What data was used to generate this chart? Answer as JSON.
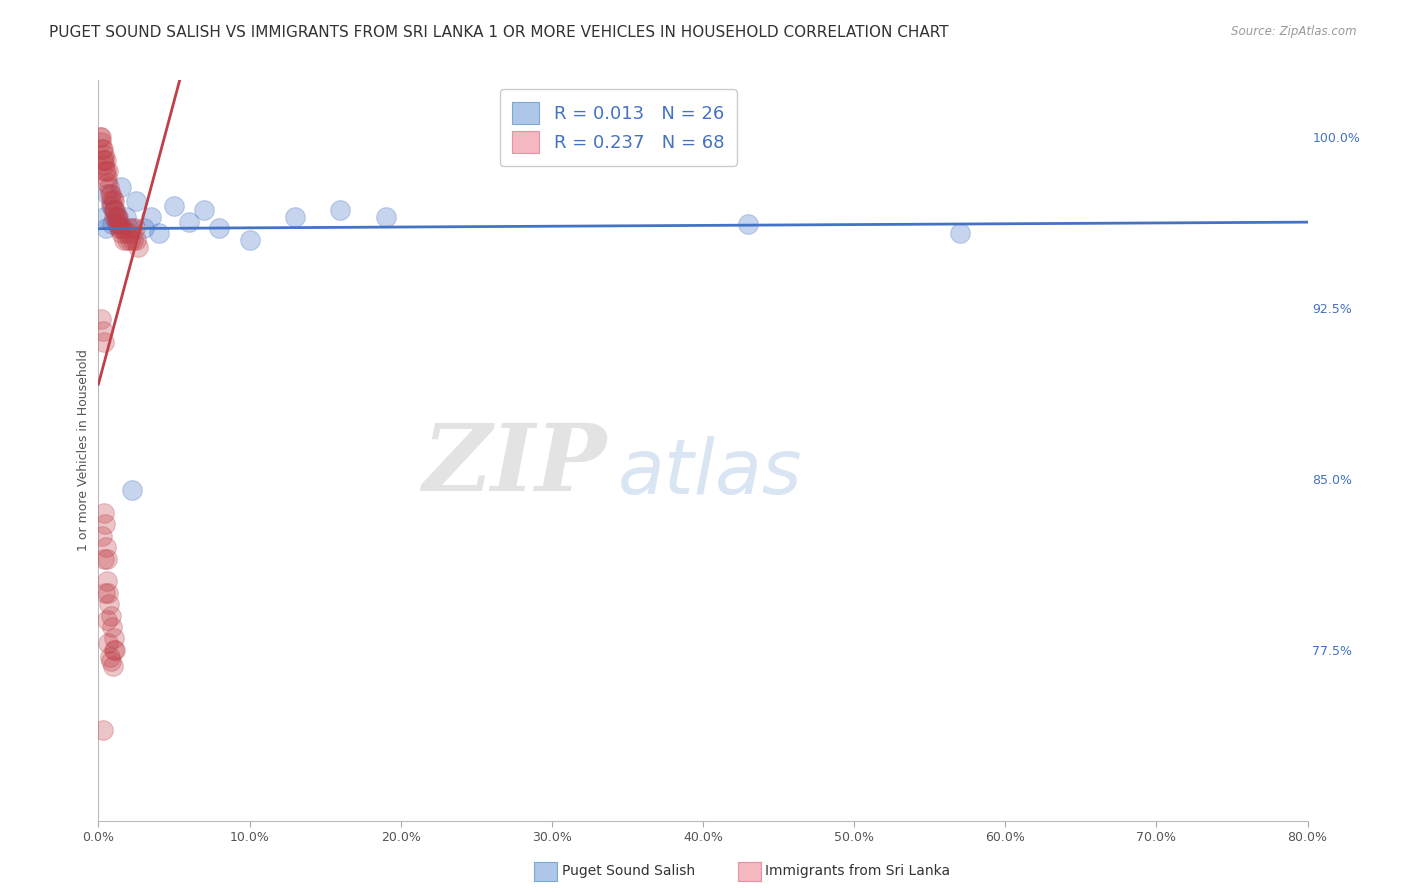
{
  "title": "PUGET SOUND SALISH VS IMMIGRANTS FROM SRI LANKA 1 OR MORE VEHICLES IN HOUSEHOLD CORRELATION CHART",
  "source": "Source: ZipAtlas.com",
  "ylabel": "1 or more Vehicles in Household",
  "xlim": [
    0.0,
    80.0
  ],
  "ylim": [
    70.0,
    102.5
  ],
  "yticks_right": [
    77.5,
    85.0,
    92.5,
    100.0
  ],
  "xticks": [
    0.0,
    10.0,
    20.0,
    30.0,
    40.0,
    50.0,
    60.0,
    70.0,
    80.0
  ],
  "legend_entries": [
    {
      "label": "Puget Sound Salish",
      "color": "#aec6e8",
      "border": "#7aabd4",
      "R": 0.013,
      "N": 26
    },
    {
      "label": "Immigrants from Sri Lanka",
      "color": "#f4b8c1",
      "border": "#e891a0",
      "R": 0.237,
      "N": 68
    }
  ],
  "blue_scatter_x": [
    0.4,
    0.6,
    0.8,
    1.0,
    1.3,
    1.5,
    1.8,
    2.0,
    2.5,
    3.0,
    3.5,
    4.0,
    5.0,
    6.0,
    7.0,
    8.0,
    10.0,
    13.0,
    16.0,
    19.0,
    0.5,
    0.9,
    1.2,
    2.2,
    43.0,
    57.0
  ],
  "blue_scatter_y": [
    96.5,
    97.5,
    97.0,
    96.8,
    96.2,
    97.8,
    96.5,
    96.0,
    97.2,
    96.0,
    96.5,
    95.8,
    97.0,
    96.3,
    96.8,
    96.0,
    95.5,
    96.5,
    96.8,
    96.5,
    96.0,
    96.2,
    96.5,
    84.5,
    96.2,
    95.8
  ],
  "pink_scatter_x": [
    0.1,
    0.15,
    0.2,
    0.25,
    0.3,
    0.3,
    0.35,
    0.4,
    0.4,
    0.45,
    0.5,
    0.5,
    0.55,
    0.6,
    0.65,
    0.7,
    0.75,
    0.8,
    0.85,
    0.9,
    0.95,
    1.0,
    1.0,
    1.05,
    1.1,
    1.15,
    1.2,
    1.25,
    1.3,
    1.35,
    1.4,
    1.45,
    1.5,
    1.6,
    1.7,
    1.8,
    1.9,
    2.0,
    2.1,
    2.2,
    2.3,
    2.4,
    2.5,
    2.6,
    0.2,
    0.3,
    0.35,
    0.4,
    0.45,
    0.5,
    0.55,
    0.6,
    0.65,
    0.7,
    0.8,
    0.9,
    1.0,
    1.1,
    0.25,
    0.35,
    0.45,
    0.55,
    0.65,
    0.75,
    0.85,
    0.95,
    1.05,
    0.3
  ],
  "pink_scatter_y": [
    100.0,
    99.8,
    100.0,
    99.5,
    99.5,
    99.0,
    99.2,
    98.8,
    99.0,
    98.5,
    98.5,
    99.0,
    98.2,
    98.0,
    98.5,
    97.8,
    97.5,
    97.5,
    97.2,
    97.0,
    97.3,
    96.8,
    97.2,
    96.5,
    96.8,
    96.5,
    96.5,
    96.2,
    96.5,
    96.0,
    96.2,
    96.0,
    95.8,
    96.0,
    95.5,
    95.8,
    95.5,
    95.8,
    95.5,
    96.0,
    95.5,
    96.0,
    95.5,
    95.2,
    92.0,
    91.5,
    91.0,
    83.5,
    83.0,
    82.0,
    81.5,
    80.5,
    80.0,
    79.5,
    79.0,
    78.5,
    78.0,
    77.5,
    82.5,
    81.5,
    80.0,
    78.8,
    77.8,
    77.2,
    77.0,
    76.8,
    77.5,
    74.0
  ],
  "blue_line_color": "#4472c4",
  "pink_line_color": "#c0404a",
  "title_fontsize": 11,
  "axis_label_fontsize": 9,
  "tick_fontsize": 9,
  "watermark_zip": "ZIP",
  "watermark_atlas": "atlas",
  "watermark_zip_color": "#cccccc",
  "watermark_atlas_color": "#aec6e8",
  "background_color": "#ffffff",
  "grid_color": "#cccccc"
}
